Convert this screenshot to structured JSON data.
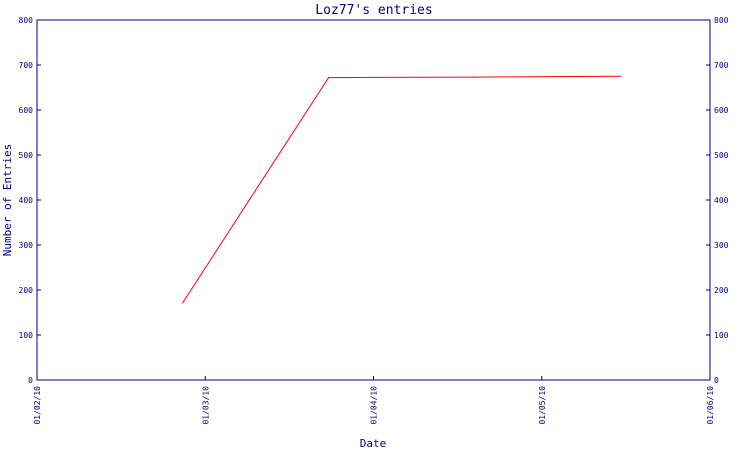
{
  "chart_data": {
    "type": "line",
    "title": "Loz77's entries",
    "xlabel": "Date",
    "ylabel": "Number of Entries",
    "x_ticks": [
      "01/02/10",
      "01/03/10",
      "01/04/10",
      "01/05/10",
      "01/06/10"
    ],
    "y_ticks": [
      "0",
      "100",
      "200",
      "300",
      "400",
      "500",
      "600",
      "700",
      "800"
    ],
    "ylim": [
      0,
      800
    ],
    "xlim": [
      "2010-02-01",
      "2010-06-01"
    ],
    "grid": false,
    "series": [
      {
        "color": "#ff0000",
        "points": [
          {
            "x": "2010-02-27",
            "y": 172
          },
          {
            "x": "2010-03-25",
            "y": 672
          },
          {
            "x": "2010-04-20",
            "y": 673
          },
          {
            "x": "2010-05-16",
            "y": 675
          }
        ]
      }
    ],
    "colors": {
      "axis": "#000080",
      "text": "#000080",
      "line": "#ff0000"
    }
  }
}
